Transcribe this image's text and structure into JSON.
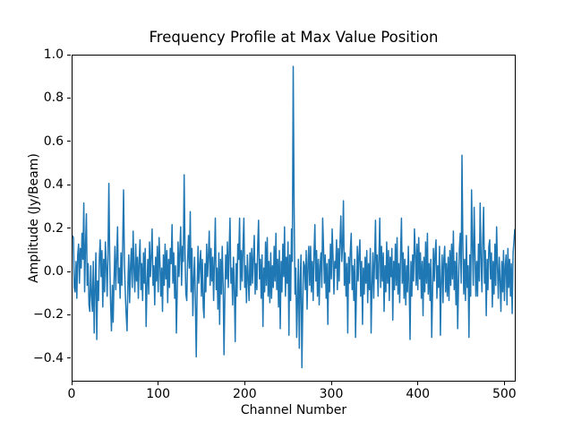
{
  "chart_data": {
    "type": "line",
    "title": "Frequency Profile at Max Value Position",
    "xlabel": "Channel Number",
    "ylabel": "Amplitude (Jy/Beam)",
    "line_color": "#1f77b4",
    "background_color": "#ffffff",
    "grid": false,
    "legend": null,
    "xlim": [
      0,
      511
    ],
    "ylim": [
      -0.5,
      1.0
    ],
    "xticks": [
      0,
      100,
      200,
      300,
      400,
      500
    ],
    "yticks": [
      -0.4,
      -0.2,
      0.0,
      0.2,
      0.4,
      0.6,
      0.8,
      1.0
    ],
    "x_start": 0,
    "x_step": 1,
    "notable_points": {
      "main_peak": {
        "channel": 255,
        "amplitude": 0.95
      },
      "secondary_peak": {
        "channel": 450,
        "amplitude": 0.54
      },
      "deepest_trough": {
        "channel": 265,
        "amplitude": -0.44
      }
    },
    "values": [
      0.17,
      0.16,
      -0.07,
      -0.09,
      0.05,
      -0.12,
      0.08,
      0.13,
      -0.05,
      0.11,
      0.02,
      0.18,
      0.06,
      0.32,
      -0.09,
      0.12,
      0.27,
      -0.06,
      0.04,
      -0.15,
      -0.18,
      0.03,
      -0.11,
      -0.18,
      0.05,
      -0.28,
      -0.08,
      0.09,
      -0.31,
      -0.04,
      -0.13,
      0.07,
      0.15,
      -0.02,
      0.1,
      -0.16,
      0.06,
      -0.09,
      0.14,
      0.03,
      -0.11,
      0.08,
      0.41,
      0.05,
      -0.14,
      -0.27,
      -0.06,
      -0.23,
      -0.03,
      0.12,
      -0.08,
      0.06,
      0.21,
      -0.05,
      0.02,
      -0.12,
      0.09,
      -0.06,
      0.14,
      0.38,
      0.04,
      -0.1,
      -0.19,
      -0.27,
      -0.05,
      0.08,
      -0.14,
      0.03,
      0.11,
      -0.07,
      0.19,
      0.02,
      -0.09,
      0.13,
      -0.04,
      0.07,
      -0.12,
      0.05,
      0.15,
      -0.08,
      0.04,
      -0.13,
      0.09,
      -0.05,
      0.11,
      -0.25,
      -0.07,
      0.06,
      -0.1,
      0.14,
      -0.02,
      0.08,
      0.2,
      -0.06,
      0.03,
      -0.15,
      0.07,
      -0.04,
      0.12,
      -0.09,
      0.16,
      0.05,
      -0.11,
      0.02,
      -0.18,
      0.08,
      -0.06,
      0.13,
      -0.03,
      0.1,
      -0.14,
      0.06,
      -0.07,
      0.11,
      0.04,
      0.22,
      -0.05,
      0.09,
      -0.12,
      0.03,
      -0.28,
      -0.08,
      0.14,
      -0.02,
      0.1,
      0.21,
      -0.06,
      0.12,
      0.05,
      0.45,
      0.08,
      -0.1,
      -0.13,
      0.06,
      0.17,
      0.02,
      0.28,
      -0.09,
      0.11,
      -0.2,
      -0.04,
      0.07,
      -0.15,
      -0.39,
      -0.08,
      0.12,
      -0.05,
      0.03,
      0.1,
      -0.11,
      0.06,
      -0.16,
      -0.21,
      0.04,
      -0.09,
      0.13,
      -0.02,
      0.08,
      0.19,
      -0.06,
      0.11,
      -0.04,
      0.07,
      -0.13,
      0.05,
      0.25,
      -0.08,
      0.02,
      -0.17,
      0.09,
      -0.24,
      0.06,
      -0.1,
      0.12,
      -0.05,
      -0.38,
      -0.12,
      0.08,
      -0.03,
      0.14,
      -0.07,
      0.1,
      0.25,
      -0.05,
      0.02,
      -0.15,
      0.07,
      -0.09,
      -0.32,
      0.04,
      -0.11,
      0.13,
      0.06,
      0.25,
      -0.08,
      0.1,
      -0.04,
      0.12,
      0.25,
      -0.07,
      0.03,
      -0.14,
      0.08,
      -0.02,
      -0.13,
      0.09,
      -0.06,
      0.11,
      -0.05,
      0.07,
      0.17,
      -0.1,
      0.04,
      -0.08,
      0.13,
      0.24,
      -0.03,
      0.06,
      -0.12,
      0.08,
      -0.25,
      0.02,
      -0.09,
      0.14,
      -0.06,
      0.16,
      -0.11,
      0.05,
      -0.14,
      0.09,
      -0.12,
      0.03,
      -0.07,
      0.12,
      -0.04,
      0.18,
      -0.08,
      0.06,
      -0.16,
      0.1,
      -0.26,
      0.05,
      -0.09,
      0.13,
      -0.02,
      0.21,
      -0.11,
      0.07,
      -0.05,
      0.14,
      -0.29,
      0.08,
      -0.13,
      0.2,
      0.05,
      0.95,
      0.3,
      -0.1,
      0.02,
      -0.3,
      -0.12,
      0.06,
      -0.35,
      -0.04,
      0.08,
      -0.44,
      -0.15,
      0.05,
      0.03,
      -0.08,
      0.1,
      -0.17,
      0.04,
      0.12,
      -0.06,
      0.12,
      -0.09,
      0.05,
      -0.13,
      0.08,
      0.22,
      -0.04,
      0.1,
      -0.11,
      0.06,
      -0.15,
      0.03,
      0.09,
      -0.07,
      0.25,
      0.11,
      -0.05,
      0.08,
      -0.12,
      0.04,
      -0.24,
      0.06,
      -0.09,
      0.13,
      -0.03,
      0.2,
      0.07,
      -0.1,
      0.05,
      0.02,
      0.15,
      -0.08,
      0.11,
      -0.04,
      0.13,
      0.26,
      0.05,
      0.12,
      0.33,
      -0.06,
      0.09,
      -0.11,
      0.04,
      -0.28,
      0.07,
      -0.05,
      0.1,
      0.18,
      -0.08,
      0.03,
      -0.13,
      0.06,
      -0.3,
      -0.09,
      0.12,
      -0.04,
      0.08,
      0.15,
      -0.11,
      0.05,
      -0.24,
      0.02,
      -0.1,
      0.07,
      -0.05,
      0.1,
      -0.14,
      0.04,
      -0.08,
      0.11,
      -0.28,
      -0.06,
      0.09,
      -0.12,
      0.05,
      0.24,
      -0.03,
      0.08,
      -0.11,
      0.06,
      0.25,
      -0.07,
      0.12,
      -0.04,
      0.09,
      -0.18,
      0.03,
      -0.09,
      0.14,
      -0.05,
      0.1,
      -0.13,
      0.07,
      -0.02,
      0.11,
      -0.22,
      0.05,
      -0.08,
      0.13,
      -0.06,
      0.16,
      -0.1,
      0.04,
      -0.14,
      0.08,
      0.25,
      -0.05,
      0.09,
      -0.12,
      0.06,
      -0.15,
      0.03,
      -0.09,
      0.12,
      -0.07,
      -0.31,
      0.05,
      -0.11,
      0.08,
      -0.04,
      0.2,
      0.1,
      -0.06,
      0.13,
      -0.08,
      0.16,
      -0.03,
      0.09,
      -0.12,
      0.05,
      -0.2,
      0.07,
      -0.09,
      0.14,
      -0.05,
      0.18,
      -0.1,
      0.04,
      -0.13,
      0.06,
      -0.3,
      -0.08,
      0.11,
      -0.04,
      0.09,
      0.15,
      -0.12,
      0.03,
      -0.07,
      0.12,
      -0.29,
      -0.05,
      0.08,
      -0.14,
      0.06,
      0.12,
      -0.09,
      0.04,
      -0.11,
      0.07,
      -0.13,
      0.1,
      -0.06,
      0.13,
      -0.03,
      0.19,
      -0.08,
      0.05,
      -0.15,
      0.09,
      -0.26,
      -0.04,
      0.11,
      0.18,
      -0.05,
      0.54,
      0.12,
      -0.1,
      0.06,
      -0.13,
      0.17,
      -0.07,
      0.03,
      -0.3,
      0.08,
      -0.11,
      0.38,
      0.14,
      -0.06,
      0.3,
      0.09,
      -0.11,
      0.05,
      -0.11,
      0.13,
      -0.04,
      0.32,
      0.07,
      -0.09,
      0.15,
      0.3,
      -0.05,
      0.1,
      -0.2,
      0.06,
      -0.08,
      0.12,
      0.15,
      -0.03,
      0.09,
      -0.16,
      0.05,
      -0.1,
      0.13,
      -0.06,
      0.21,
      0.02,
      -0.12,
      0.07,
      -0.04,
      -0.18,
      0.05,
      -0.09,
      0.1,
      -0.13,
      0.03,
      0.08,
      -0.15,
      0.11,
      -0.07,
      0.06,
      -0.11,
      0.04,
      -0.19,
      0.09,
      0.14,
      0.2
    ]
  }
}
